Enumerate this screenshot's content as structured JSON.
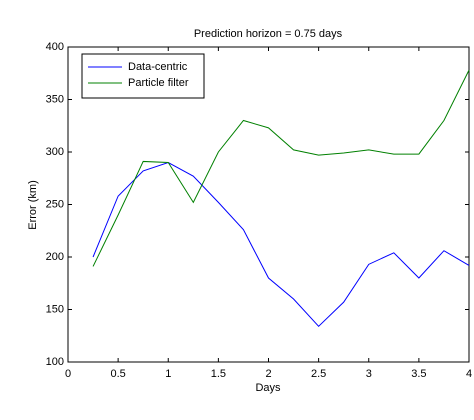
{
  "chart_data": {
    "type": "line",
    "title": "Prediction horizon = 0.75 days",
    "x_label": "Days",
    "y_label": "Error (km)",
    "x": [
      0.25,
      0.5,
      0.75,
      1.0,
      1.25,
      1.5,
      1.75,
      2.0,
      2.25,
      2.5,
      2.75,
      3.0,
      3.25,
      3.5,
      3.75,
      4.0
    ],
    "series": [
      {
        "name": "Data-centric",
        "color": "#0000ff",
        "values": [
          200,
          258,
          282,
          290,
          277,
          252,
          226,
          180,
          160,
          134,
          157,
          193,
          204,
          180,
          206,
          192
        ]
      },
      {
        "name": "Particle filter",
        "color": "#008000",
        "values": [
          191,
          240,
          291,
          290,
          252,
          300,
          330,
          323,
          302,
          297,
          299,
          302,
          298,
          298,
          330,
          378
        ]
      }
    ],
    "xlim": [
      0,
      4
    ],
    "xticks": [
      0,
      0.5,
      1,
      1.5,
      2,
      2.5,
      3,
      3.5,
      4
    ],
    "ylim": [
      100,
      400
    ],
    "yticks": [
      100,
      150,
      200,
      250,
      300,
      350,
      400
    ],
    "grid": false,
    "legend": "upper left"
  }
}
